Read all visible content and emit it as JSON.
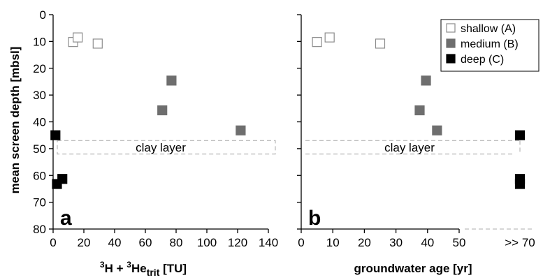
{
  "chart_data": [
    {
      "type": "scatter",
      "panel_label": "a",
      "xlabel_parts": {
        "sup1": "3",
        "mid": "H + ",
        "sup2": "3",
        "He": "He",
        "sub": "trit",
        "unit": " [TU]"
      },
      "ylabel": "mean screen depth [mbsl]",
      "xlim": [
        0,
        140
      ],
      "ylim": [
        0,
        80
      ],
      "y_inverted": true,
      "xticks": [
        "0",
        "20",
        "40",
        "60",
        "80",
        "100",
        "120",
        "140"
      ],
      "yticks": [
        "0",
        "10",
        "20",
        "30",
        "40",
        "50",
        "60",
        "70",
        "80"
      ],
      "annotation": "clay layer",
      "clay_layer_depth": [
        47,
        52
      ],
      "series": [
        {
          "name": "shallow (A)",
          "color": "#ffffff",
          "points": [
            [
              13,
              10.2
            ],
            [
              16,
              8.5
            ],
            [
              29,
              10.8
            ]
          ]
        },
        {
          "name": "medium (B)",
          "color": "#6e6e6e",
          "points": [
            [
              71,
              35.7
            ],
            [
              77,
              24.6
            ],
            [
              122,
              43.2
            ]
          ]
        },
        {
          "name": "deep (C)",
          "color": "#000000",
          "points": [
            [
              1.5,
              45
            ],
            [
              2.5,
              63.2
            ],
            [
              6,
              61.3
            ]
          ]
        }
      ]
    },
    {
      "type": "scatter",
      "panel_label": "b",
      "xlabel": "groundwater age [yr]",
      "xlim": [
        0,
        50
      ],
      "ylim": [
        0,
        80
      ],
      "y_inverted": true,
      "xticks": [
        "0",
        "10",
        "20",
        "30",
        "40",
        "50"
      ],
      "yticks": [
        "0",
        "10",
        "20",
        "30",
        "40",
        "50",
        "60",
        "70",
        "80"
      ],
      "extra_xtick_label": ">> 70",
      "annotation": "clay layer",
      "clay_layer_depth": [
        47,
        52
      ],
      "series": [
        {
          "name": "shallow (A)",
          "color": "#ffffff",
          "points": [
            [
              5,
              10.2
            ],
            [
              9,
              8.5
            ],
            [
              25,
              10.8
            ]
          ]
        },
        {
          "name": "medium (B)",
          "color": "#6e6e6e",
          "points": [
            [
              37.5,
              35.7
            ],
            [
              39.5,
              24.6
            ],
            [
              43,
              43.2
            ]
          ]
        },
        {
          "name": "deep (C)",
          "color": "#000000",
          "points": [
            [
              ">> 70",
              45
            ],
            [
              ">> 70",
              61.3
            ],
            [
              ">> 70",
              63.2
            ]
          ]
        }
      ]
    }
  ],
  "legend": {
    "items": [
      {
        "label": "shallow (A)",
        "fill": "#ffffff",
        "stroke": "#8c8c8c"
      },
      {
        "label": "medium (B)",
        "fill": "#6e6e6e",
        "stroke": "#6e6e6e"
      },
      {
        "label": "deep (C)",
        "fill": "#000000",
        "stroke": "#000000"
      }
    ]
  }
}
